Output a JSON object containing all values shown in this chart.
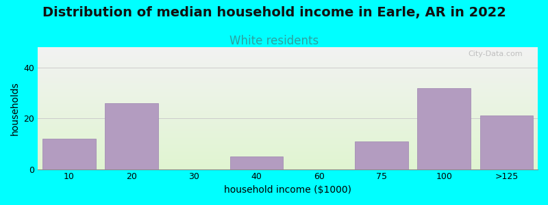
{
  "title": "Distribution of median household income in Earle, AR in 2022",
  "subtitle": "White residents",
  "xlabel": "household income ($1000)",
  "ylabel": "households",
  "bg_color": "#00FFFF",
  "plot_bg_top": "#f0f0f0",
  "plot_bg_bottom": "#e8f5e0",
  "bar_color": "#b39cc0",
  "bar_edge_color": "#9b82af",
  "title_fontsize": 14,
  "subtitle_fontsize": 12,
  "subtitle_color": "#2ca0a0",
  "categories": [
    "10",
    "20",
    "30",
    "40",
    "60",
    "75",
    "100",
    ">125"
  ],
  "values": [
    12,
    26,
    0,
    5,
    0,
    11,
    32,
    21
  ],
  "bar_positions": [
    1,
    2,
    3,
    4,
    5,
    6,
    7,
    8
  ],
  "ylim": [
    0,
    48
  ],
  "yticks": [
    0,
    20,
    40
  ],
  "watermark": "City-Data.com"
}
